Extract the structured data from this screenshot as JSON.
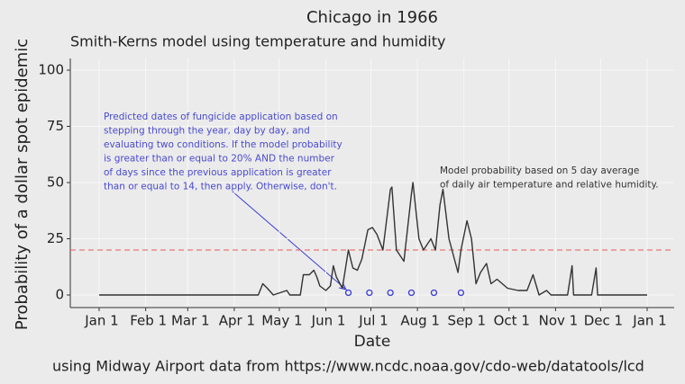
{
  "chart_data": {
    "type": "line",
    "title": "Chicago in 1966",
    "subtitle": "Smith-Kerns model using temperature and humidity",
    "x_label": "Date",
    "y_label": "Probability of a dollar spot epidemic",
    "caption": "using Midway Airport data from https://www.ncdc.noaa.gov/cdo-web/datatools/lcd",
    "xlim": [
      -19.2,
      383
    ],
    "ylim": [
      -5.6,
      105.2
    ],
    "xticks": [
      {
        "value": 0,
        "label": "Jan 1"
      },
      {
        "value": 31,
        "label": "Feb 1"
      },
      {
        "value": 59,
        "label": "Mar 1"
      },
      {
        "value": 90,
        "label": "Apr 1"
      },
      {
        "value": 120,
        "label": "May 1"
      },
      {
        "value": 151,
        "label": "Jun 1"
      },
      {
        "value": 181,
        "label": "Jul 1"
      },
      {
        "value": 212,
        "label": "Aug 1"
      },
      {
        "value": 243,
        "label": "Sep 1"
      },
      {
        "value": 273,
        "label": "Oct 1"
      },
      {
        "value": 304,
        "label": "Nov 1"
      },
      {
        "value": 334,
        "label": "Dec 1"
      },
      {
        "value": 365,
        "label": "Jan 1"
      }
    ],
    "yticks": [
      0,
      25,
      50,
      75,
      100
    ],
    "grid": true,
    "hline": {
      "value": 20,
      "color": "#e8595a"
    },
    "series": [
      {
        "color": "#333333",
        "mode": "line",
        "x": [
          0,
          106,
          109,
          112,
          116,
          125,
          127,
          134,
          136,
          140,
          143,
          145,
          147,
          151,
          154,
          156,
          158,
          162,
          166,
          169,
          172,
          175,
          179,
          182,
          185,
          189,
          194,
          195,
          198,
          203,
          208,
          209,
          213,
          216,
          221,
          224,
          227,
          229,
          233,
          237,
          239,
          241,
          245,
          248,
          251,
          254,
          258,
          261,
          265,
          272,
          279,
          285,
          289,
          293,
          298,
          301,
          312,
          315,
          316,
          328,
          331,
          332,
          365
        ],
        "values": [
          0,
          0,
          5,
          3,
          0,
          2,
          0,
          0,
          9,
          9,
          11,
          8,
          4,
          2,
          4,
          13,
          8,
          3,
          20,
          12,
          11,
          16,
          29,
          30,
          27,
          20,
          47,
          48,
          20,
          15,
          45,
          50,
          25,
          20,
          25,
          20,
          40,
          47,
          25,
          15,
          10,
          20,
          33,
          25,
          5,
          10,
          14,
          5,
          7,
          3,
          2,
          2,
          9,
          0,
          2,
          0,
          0,
          13,
          0,
          0,
          12,
          0,
          0
        ]
      },
      {
        "color": "#3b3bd6",
        "mode": "markers",
        "x": [
          166,
          180,
          194,
          208,
          223,
          241
        ],
        "values": [
          1,
          1,
          1,
          1,
          1,
          1
        ]
      }
    ],
    "annotations": [
      {
        "color": "#4a4ad0",
        "lines": [
          "Predicted dates of fungicide application based on",
          "stepping through the year, day by day, and",
          "evaluating two conditions. If the model probability",
          "is greater than or equal to 20% AND the number",
          "of days since the previous application is greater",
          "than or equal to 14, then apply. Otherwise, don't."
        ]
      },
      {
        "color": "#333333",
        "lines": [
          "Model probability based on 5 day average",
          "of daily air temperature and relative humidity."
        ]
      }
    ]
  }
}
